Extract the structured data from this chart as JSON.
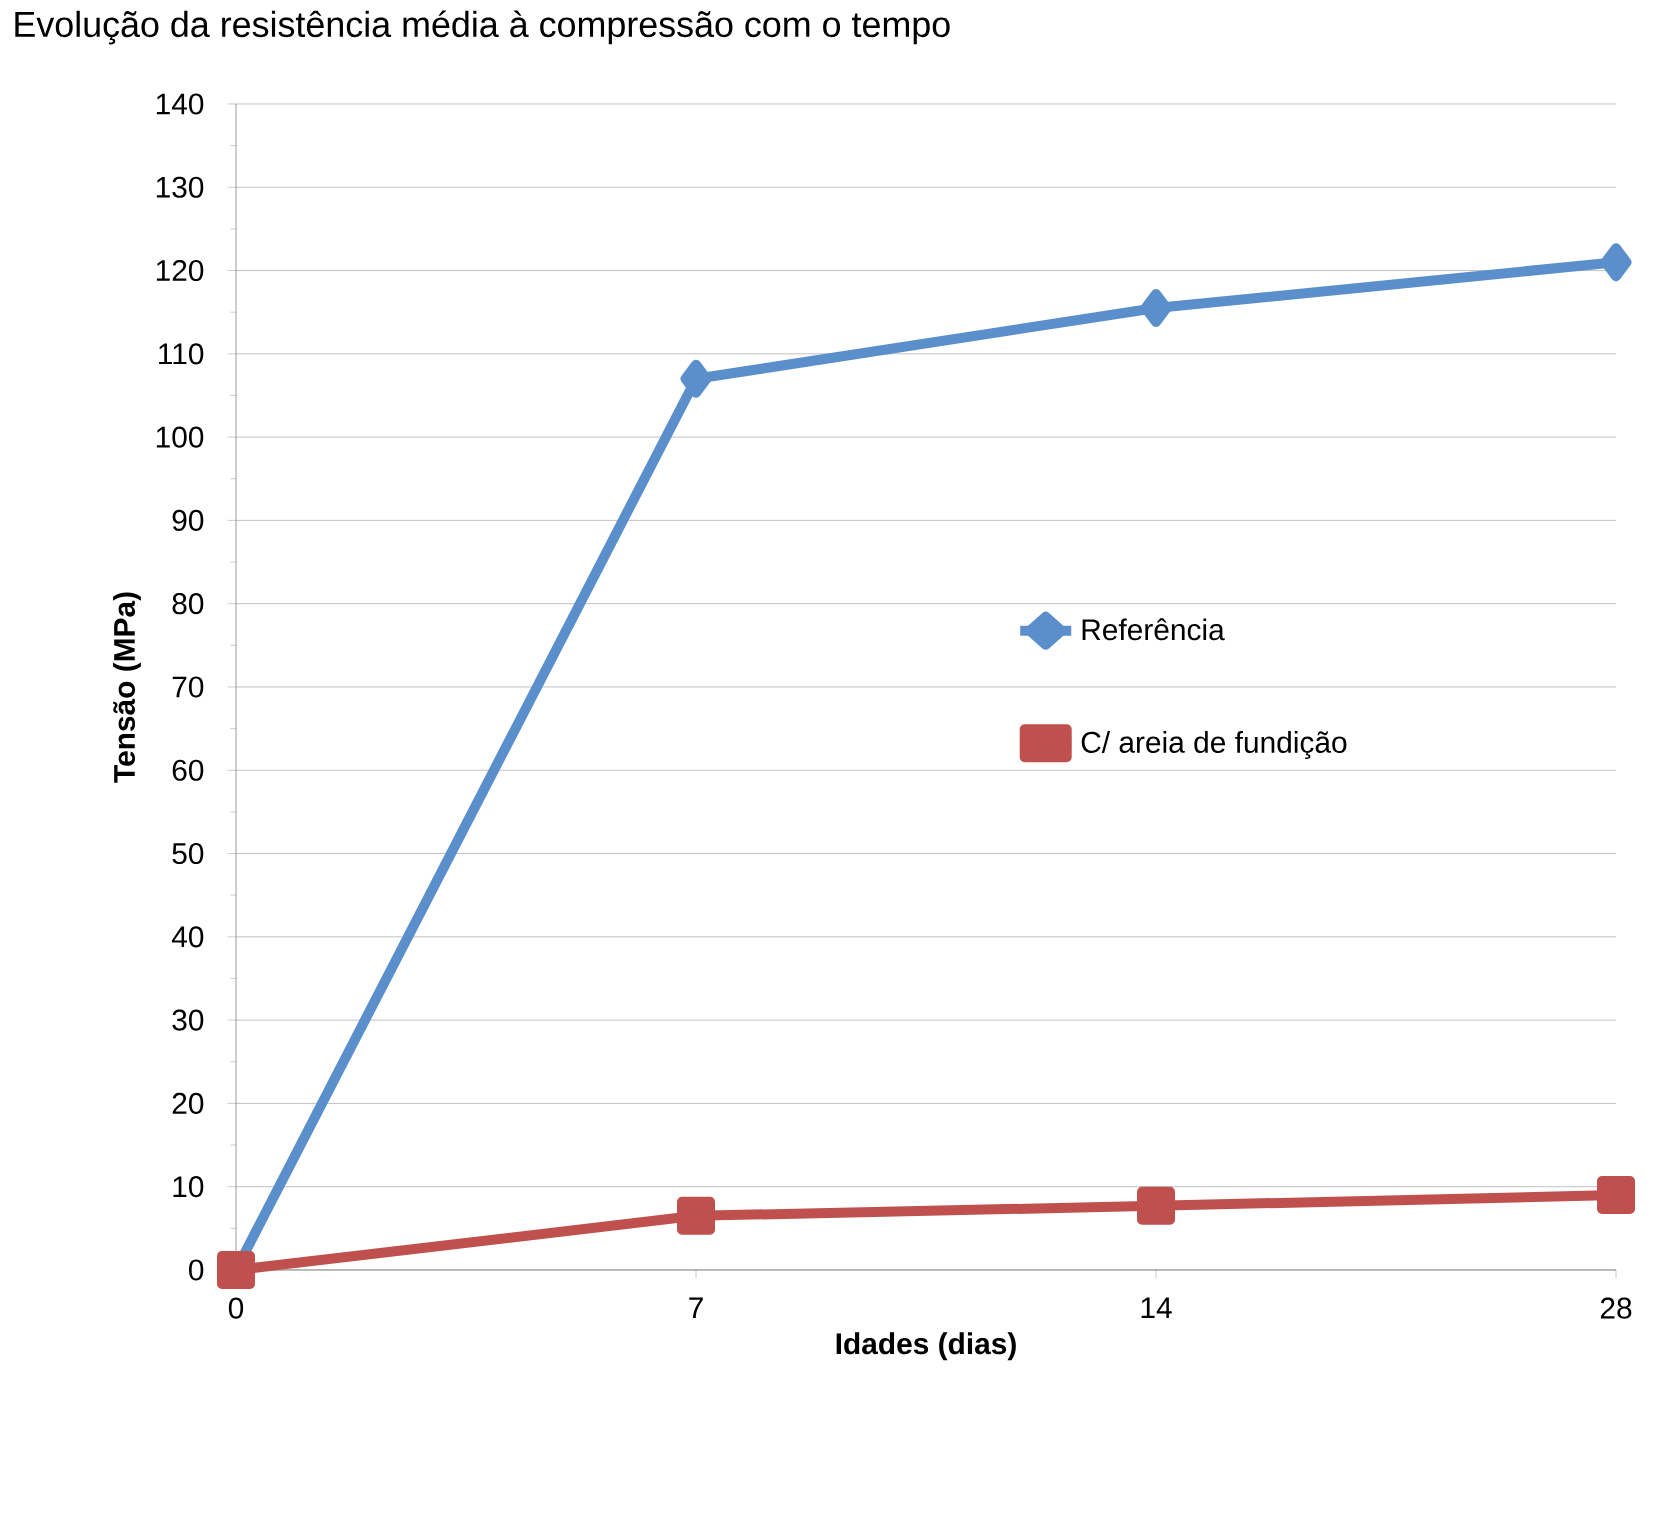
{
  "chart_data": {
    "type": "line",
    "title": "Evolução da resistência média à compressão com o tempo",
    "xlabel": "Idades (dias)",
    "ylabel": "Tensão (MPa)",
    "categories": [
      "0",
      "7",
      "14",
      "28"
    ],
    "series": [
      {
        "name": "Referência",
        "color": "#5b8fcc",
        "marker": "diamond",
        "values": [
          0,
          107,
          115.5,
          121
        ]
      },
      {
        "name": "C/ areia de fundição",
        "color": "#c0504d",
        "marker": "square",
        "values": [
          0,
          6.5,
          7.7,
          9
        ]
      }
    ],
    "ylim": [
      0,
      140
    ],
    "yticks": [
      0,
      10,
      20,
      30,
      40,
      50,
      60,
      70,
      80,
      90,
      100,
      110,
      120,
      130,
      140
    ],
    "grid": "y",
    "legend": "right",
    "line_style": "solid"
  }
}
